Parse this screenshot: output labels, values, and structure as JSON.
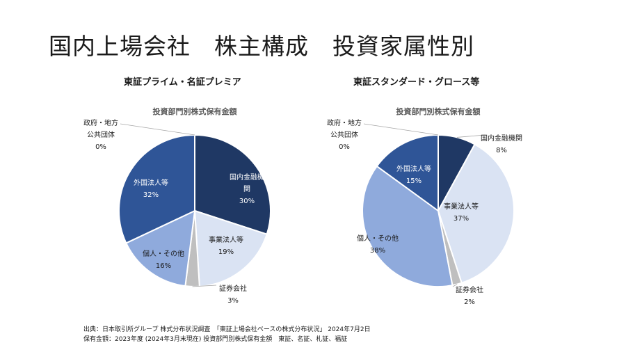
{
  "slide_title": "国内上場会社　株主構成　投資家属性別",
  "chart_data": [
    {
      "type": "pie",
      "heading": "東証プライム・名証プレミア",
      "title": "投資部門別株式保有金額",
      "unit": "%",
      "slices": [
        {
          "label": "国内金融機関",
          "value": 30,
          "color": "#1f3864"
        },
        {
          "label": "事業法人等",
          "value": 19,
          "color": "#dae3f3"
        },
        {
          "label": "証券会社",
          "value": 3,
          "color": "#bfbfbf"
        },
        {
          "label": "個人・その他",
          "value": 16,
          "color": "#8faadc"
        },
        {
          "label": "外国法人等",
          "value": 32,
          "color": "#2f5597"
        },
        {
          "label": "政府・地方公共団体",
          "value": 0,
          "color": "#a6a6a6"
        }
      ]
    },
    {
      "type": "pie",
      "heading": "東証スタンダード・グロース等",
      "title": "投資部門別株式保有金額",
      "unit": "%",
      "slices": [
        {
          "label": "国内金融機関",
          "value": 8,
          "color": "#1f3864"
        },
        {
          "label": "事業法人等",
          "value": 37,
          "color": "#dae3f3"
        },
        {
          "label": "証券会社",
          "value": 2,
          "color": "#bfbfbf"
        },
        {
          "label": "個人・その他",
          "value": 38,
          "color": "#8faadc"
        },
        {
          "label": "外国法人等",
          "value": 15,
          "color": "#2f5597"
        },
        {
          "label": "政府・地方公共団体",
          "value": 0,
          "color": "#a6a6a6"
        }
      ]
    }
  ],
  "source_line1": "出典：日本取引所グループ 株式分布状況調査　「東証上場会社ベースの株式分布状況」 2024年7月2日",
  "source_line2": "保有金額：2023年度 (2024年3月末現在) 投資部門別株式保有金額　東証、名証、札証、福証"
}
